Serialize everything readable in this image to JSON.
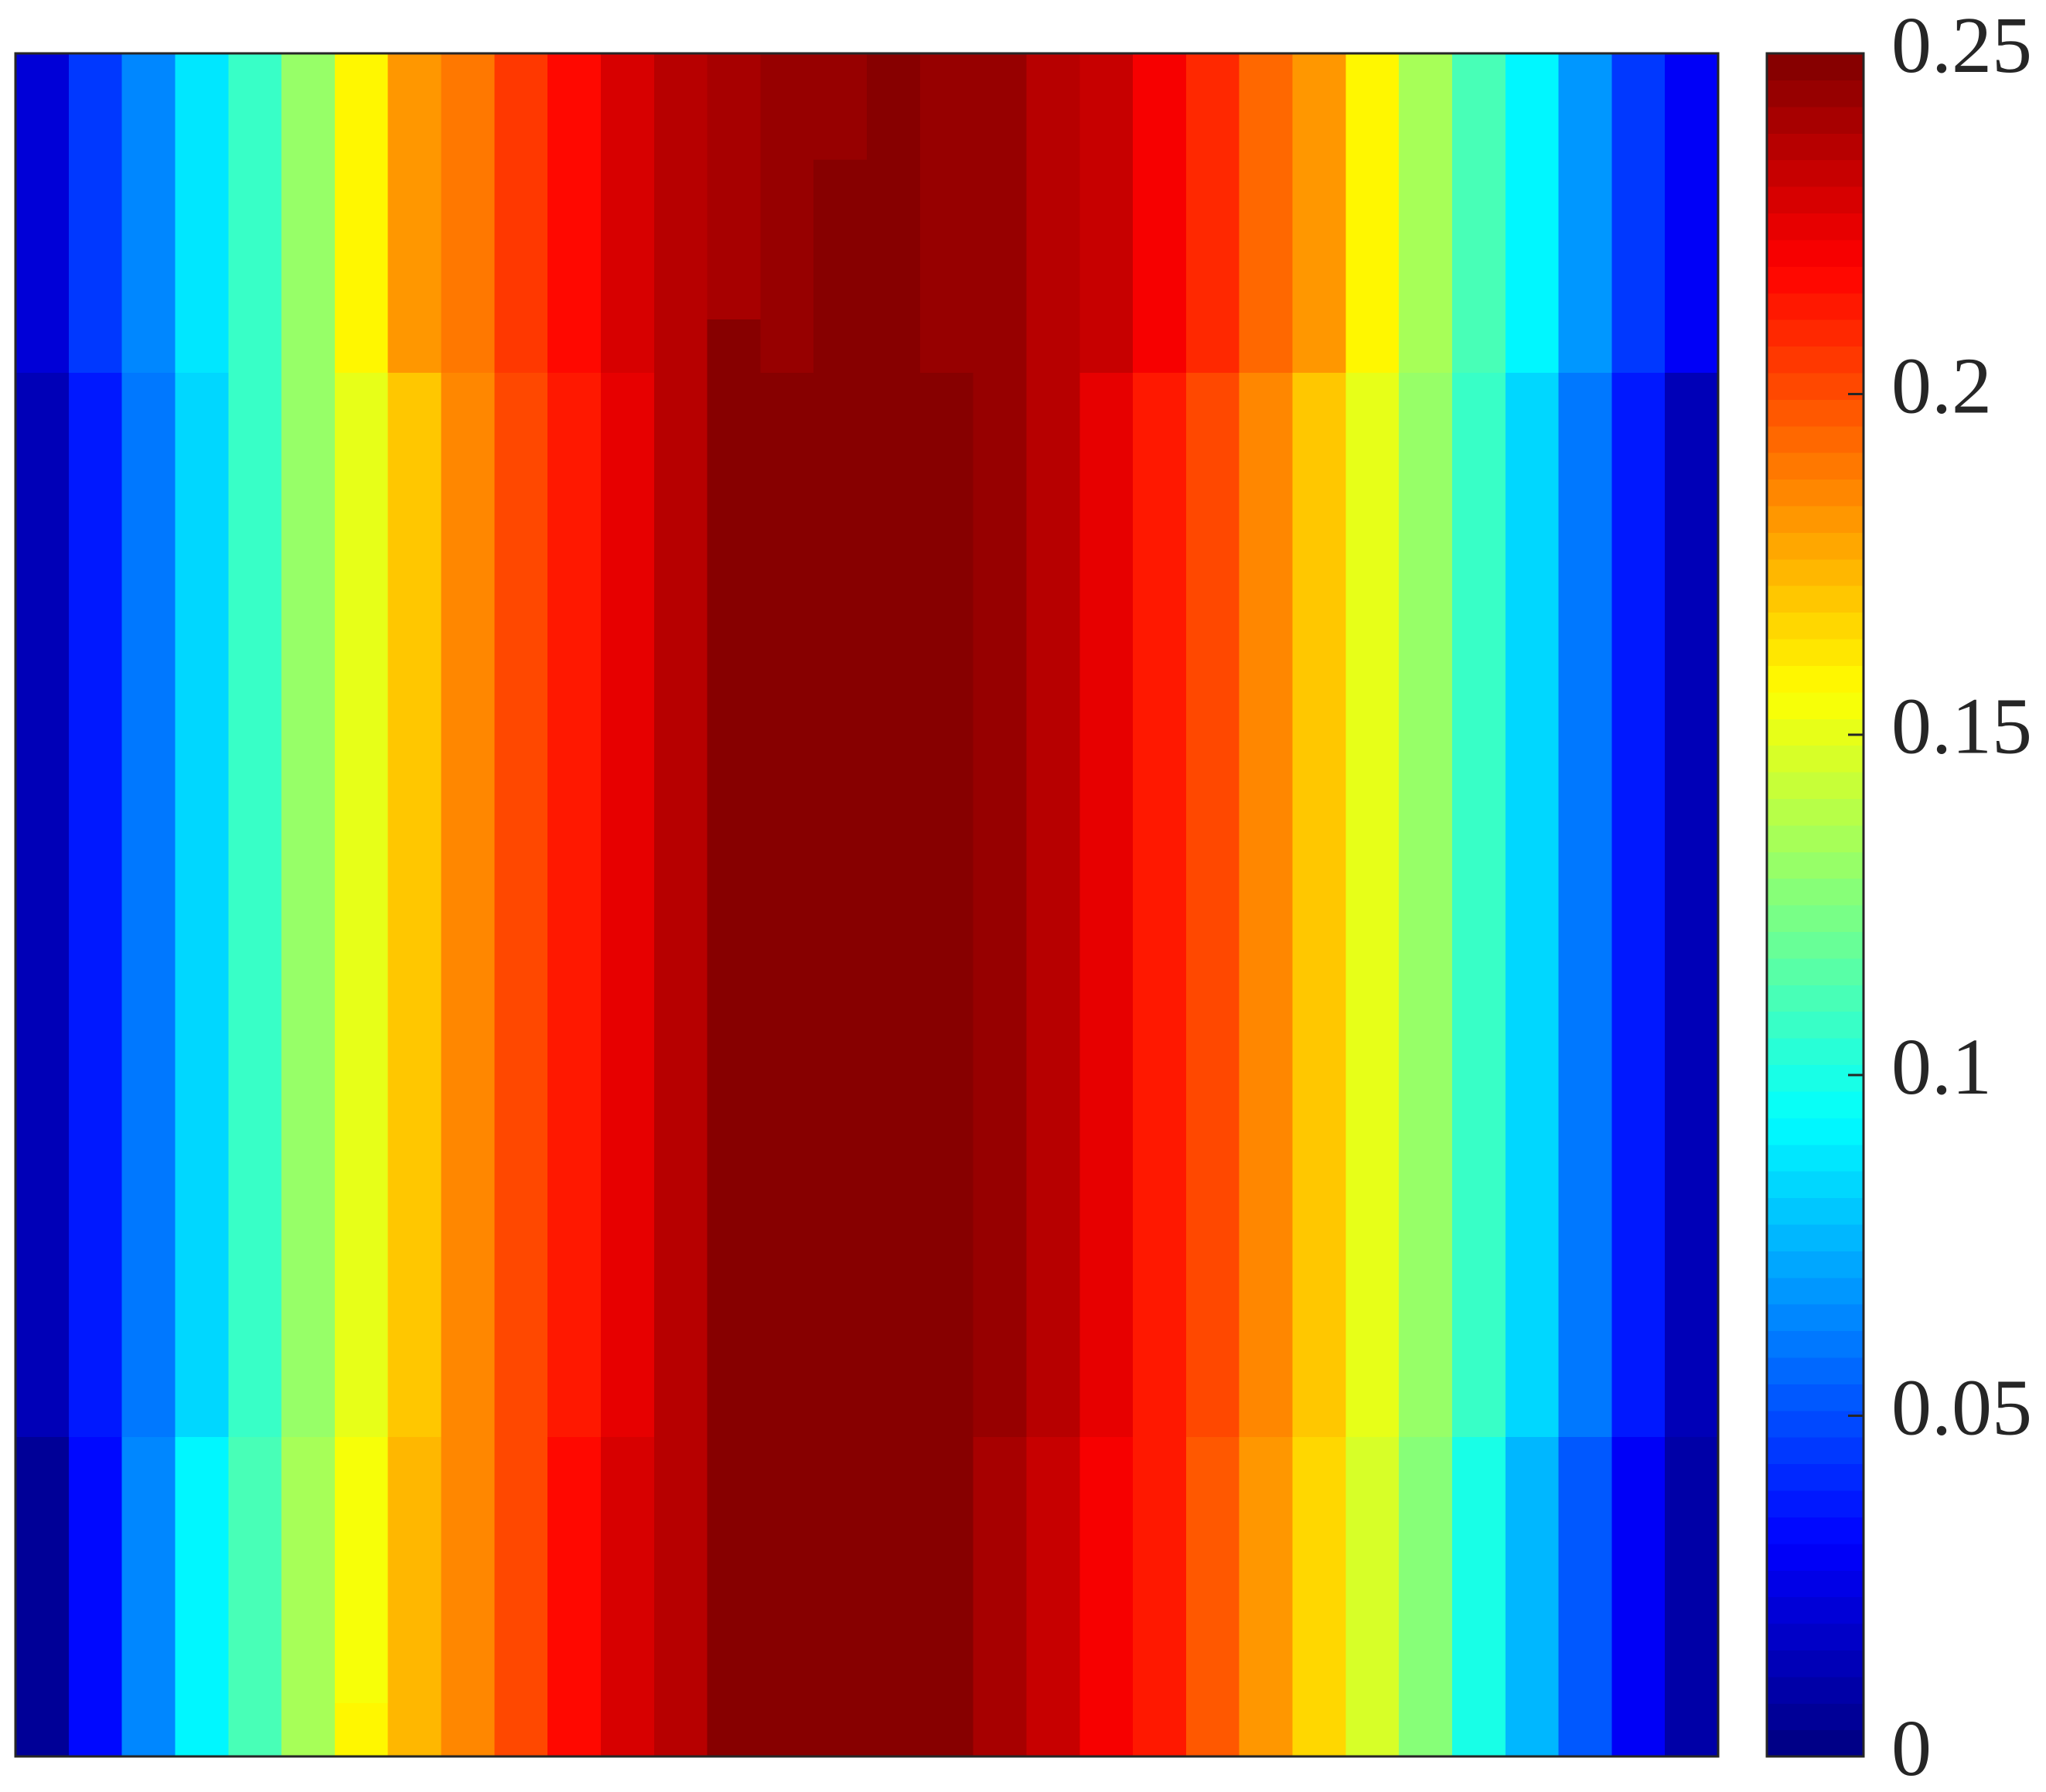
{
  "chart_data": {
    "type": "heatmap",
    "colormap": "jet",
    "clim": [
      0,
      0.25
    ],
    "cticks": [
      0,
      0.05,
      0.1,
      0.15,
      0.2,
      0.25
    ],
    "values": [
      [
        0.022,
        0.045,
        0.066,
        0.088,
        0.108,
        0.13,
        0.16,
        0.18,
        0.19,
        0.205,
        0.218,
        0.228,
        0.236,
        0.242,
        0.244,
        0.246,
        0.248,
        0.246,
        0.244,
        0.238,
        0.232,
        0.22,
        0.208,
        0.193,
        0.18,
        0.16,
        0.135,
        0.11,
        0.09,
        0.068,
        0.045,
        0.03
      ],
      [
        0.022,
        0.045,
        0.066,
        0.088,
        0.108,
        0.13,
        0.16,
        0.18,
        0.19,
        0.205,
        0.218,
        0.228,
        0.236,
        0.242,
        0.244,
        0.246,
        0.248,
        0.246,
        0.244,
        0.238,
        0.232,
        0.22,
        0.208,
        0.193,
        0.18,
        0.16,
        0.135,
        0.11,
        0.09,
        0.068,
        0.045,
        0.03
      ],
      [
        0.022,
        0.045,
        0.066,
        0.088,
        0.108,
        0.13,
        0.16,
        0.18,
        0.19,
        0.205,
        0.218,
        0.228,
        0.236,
        0.242,
        0.244,
        0.25,
        0.248,
        0.246,
        0.244,
        0.238,
        0.232,
        0.22,
        0.208,
        0.193,
        0.18,
        0.16,
        0.135,
        0.11,
        0.09,
        0.068,
        0.045,
        0.03
      ],
      [
        0.022,
        0.045,
        0.066,
        0.088,
        0.108,
        0.13,
        0.16,
        0.18,
        0.19,
        0.205,
        0.218,
        0.228,
        0.236,
        0.242,
        0.244,
        0.25,
        0.25,
        0.246,
        0.244,
        0.238,
        0.232,
        0.22,
        0.208,
        0.193,
        0.18,
        0.16,
        0.135,
        0.11,
        0.09,
        0.068,
        0.045,
        0.03
      ],
      [
        0.022,
        0.045,
        0.066,
        0.088,
        0.108,
        0.13,
        0.16,
        0.18,
        0.19,
        0.205,
        0.218,
        0.228,
        0.236,
        0.242,
        0.244,
        0.25,
        0.25,
        0.246,
        0.244,
        0.238,
        0.232,
        0.22,
        0.208,
        0.193,
        0.18,
        0.16,
        0.135,
        0.11,
        0.09,
        0.068,
        0.045,
        0.03
      ],
      [
        0.022,
        0.045,
        0.066,
        0.088,
        0.108,
        0.13,
        0.16,
        0.18,
        0.19,
        0.205,
        0.218,
        0.228,
        0.236,
        0.247,
        0.244,
        0.25,
        0.25,
        0.246,
        0.244,
        0.238,
        0.232,
        0.22,
        0.208,
        0.193,
        0.18,
        0.16,
        0.135,
        0.11,
        0.09,
        0.068,
        0.045,
        0.03
      ],
      [
        0.012,
        0.037,
        0.061,
        0.084,
        0.107,
        0.129,
        0.149,
        0.168,
        0.185,
        0.201,
        0.214,
        0.226,
        0.235,
        0.247,
        0.25,
        0.25,
        0.25,
        0.247,
        0.243,
        0.235,
        0.226,
        0.214,
        0.201,
        0.185,
        0.168,
        0.149,
        0.129,
        0.107,
        0.084,
        0.061,
        0.037,
        0.012
      ],
      [
        0.012,
        0.037,
        0.061,
        0.084,
        0.107,
        0.129,
        0.149,
        0.168,
        0.185,
        0.201,
        0.214,
        0.226,
        0.235,
        0.247,
        0.25,
        0.25,
        0.25,
        0.247,
        0.243,
        0.235,
        0.226,
        0.214,
        0.201,
        0.185,
        0.168,
        0.149,
        0.129,
        0.107,
        0.084,
        0.061,
        0.037,
        0.012
      ],
      [
        0.012,
        0.037,
        0.061,
        0.084,
        0.107,
        0.129,
        0.149,
        0.168,
        0.185,
        0.201,
        0.214,
        0.226,
        0.235,
        0.247,
        0.25,
        0.25,
        0.25,
        0.25,
        0.243,
        0.235,
        0.226,
        0.214,
        0.201,
        0.185,
        0.168,
        0.149,
        0.129,
        0.107,
        0.084,
        0.061,
        0.037,
        0.012
      ],
      [
        0.012,
        0.037,
        0.061,
        0.084,
        0.107,
        0.129,
        0.149,
        0.168,
        0.185,
        0.201,
        0.214,
        0.226,
        0.235,
        0.247,
        0.25,
        0.25,
        0.25,
        0.25,
        0.243,
        0.235,
        0.226,
        0.214,
        0.201,
        0.185,
        0.168,
        0.149,
        0.129,
        0.107,
        0.084,
        0.061,
        0.037,
        0.012
      ],
      [
        0.012,
        0.037,
        0.061,
        0.084,
        0.107,
        0.129,
        0.149,
        0.168,
        0.185,
        0.201,
        0.214,
        0.226,
        0.235,
        0.247,
        0.25,
        0.25,
        0.25,
        0.25,
        0.243,
        0.235,
        0.226,
        0.214,
        0.201,
        0.185,
        0.168,
        0.149,
        0.129,
        0.107,
        0.084,
        0.061,
        0.037,
        0.012
      ],
      [
        0.012,
        0.037,
        0.061,
        0.084,
        0.107,
        0.129,
        0.149,
        0.168,
        0.185,
        0.201,
        0.214,
        0.226,
        0.235,
        0.247,
        0.25,
        0.25,
        0.25,
        0.25,
        0.243,
        0.235,
        0.226,
        0.214,
        0.201,
        0.185,
        0.168,
        0.149,
        0.129,
        0.107,
        0.084,
        0.061,
        0.037,
        0.012
      ],
      [
        0.012,
        0.037,
        0.061,
        0.084,
        0.107,
        0.129,
        0.149,
        0.168,
        0.185,
        0.201,
        0.214,
        0.226,
        0.235,
        0.247,
        0.25,
        0.25,
        0.25,
        0.25,
        0.243,
        0.235,
        0.226,
        0.214,
        0.201,
        0.185,
        0.168,
        0.149,
        0.129,
        0.107,
        0.084,
        0.061,
        0.037,
        0.012
      ],
      [
        0.012,
        0.037,
        0.061,
        0.084,
        0.107,
        0.129,
        0.149,
        0.168,
        0.185,
        0.201,
        0.214,
        0.226,
        0.235,
        0.247,
        0.25,
        0.25,
        0.25,
        0.25,
        0.243,
        0.235,
        0.226,
        0.214,
        0.201,
        0.185,
        0.168,
        0.149,
        0.129,
        0.107,
        0.084,
        0.061,
        0.037,
        0.012
      ],
      [
        0.012,
        0.037,
        0.061,
        0.084,
        0.107,
        0.129,
        0.149,
        0.168,
        0.185,
        0.201,
        0.214,
        0.226,
        0.235,
        0.247,
        0.25,
        0.25,
        0.25,
        0.25,
        0.243,
        0.235,
        0.226,
        0.214,
        0.201,
        0.185,
        0.168,
        0.149,
        0.129,
        0.107,
        0.084,
        0.061,
        0.037,
        0.012
      ],
      [
        0.012,
        0.037,
        0.061,
        0.084,
        0.107,
        0.129,
        0.149,
        0.168,
        0.185,
        0.201,
        0.214,
        0.226,
        0.235,
        0.247,
        0.25,
        0.25,
        0.25,
        0.25,
        0.243,
        0.235,
        0.226,
        0.214,
        0.201,
        0.185,
        0.168,
        0.149,
        0.129,
        0.107,
        0.084,
        0.061,
        0.037,
        0.012
      ],
      [
        0.012,
        0.037,
        0.061,
        0.084,
        0.107,
        0.129,
        0.149,
        0.168,
        0.185,
        0.201,
        0.214,
        0.226,
        0.235,
        0.247,
        0.25,
        0.25,
        0.25,
        0.25,
        0.243,
        0.235,
        0.226,
        0.214,
        0.201,
        0.185,
        0.168,
        0.149,
        0.129,
        0.107,
        0.084,
        0.061,
        0.037,
        0.012
      ],
      [
        0.012,
        0.037,
        0.061,
        0.084,
        0.107,
        0.129,
        0.149,
        0.168,
        0.185,
        0.201,
        0.214,
        0.226,
        0.235,
        0.247,
        0.25,
        0.25,
        0.25,
        0.25,
        0.243,
        0.235,
        0.226,
        0.214,
        0.201,
        0.185,
        0.168,
        0.149,
        0.129,
        0.107,
        0.084,
        0.061,
        0.037,
        0.012
      ],
      [
        0.012,
        0.037,
        0.061,
        0.084,
        0.107,
        0.129,
        0.149,
        0.168,
        0.185,
        0.201,
        0.214,
        0.226,
        0.235,
        0.247,
        0.25,
        0.25,
        0.25,
        0.25,
        0.243,
        0.235,
        0.226,
        0.214,
        0.201,
        0.185,
        0.168,
        0.149,
        0.129,
        0.107,
        0.084,
        0.061,
        0.037,
        0.012
      ],
      [
        0.012,
        0.037,
        0.061,
        0.084,
        0.107,
        0.129,
        0.149,
        0.168,
        0.185,
        0.201,
        0.214,
        0.226,
        0.235,
        0.247,
        0.25,
        0.25,
        0.25,
        0.25,
        0.243,
        0.235,
        0.226,
        0.214,
        0.201,
        0.185,
        0.168,
        0.149,
        0.129,
        0.107,
        0.084,
        0.061,
        0.037,
        0.012
      ],
      [
        0.012,
        0.037,
        0.061,
        0.084,
        0.107,
        0.129,
        0.149,
        0.168,
        0.185,
        0.201,
        0.214,
        0.226,
        0.235,
        0.247,
        0.25,
        0.25,
        0.25,
        0.25,
        0.243,
        0.235,
        0.226,
        0.214,
        0.201,
        0.185,
        0.168,
        0.149,
        0.129,
        0.107,
        0.084,
        0.061,
        0.037,
        0.012
      ],
      [
        0.012,
        0.037,
        0.061,
        0.084,
        0.107,
        0.129,
        0.149,
        0.168,
        0.185,
        0.201,
        0.214,
        0.226,
        0.235,
        0.247,
        0.25,
        0.25,
        0.25,
        0.25,
        0.243,
        0.235,
        0.226,
        0.214,
        0.201,
        0.185,
        0.168,
        0.149,
        0.129,
        0.107,
        0.084,
        0.061,
        0.037,
        0.012
      ],
      [
        0.012,
        0.037,
        0.061,
        0.084,
        0.107,
        0.129,
        0.149,
        0.168,
        0.185,
        0.201,
        0.214,
        0.226,
        0.235,
        0.247,
        0.25,
        0.25,
        0.25,
        0.25,
        0.243,
        0.235,
        0.226,
        0.214,
        0.201,
        0.185,
        0.168,
        0.149,
        0.129,
        0.107,
        0.084,
        0.061,
        0.037,
        0.012
      ],
      [
        0.012,
        0.037,
        0.061,
        0.084,
        0.107,
        0.129,
        0.149,
        0.168,
        0.185,
        0.201,
        0.214,
        0.226,
        0.235,
        0.247,
        0.25,
        0.25,
        0.25,
        0.25,
        0.243,
        0.235,
        0.226,
        0.214,
        0.201,
        0.185,
        0.168,
        0.149,
        0.129,
        0.107,
        0.084,
        0.061,
        0.037,
        0.012
      ],
      [
        0.012,
        0.037,
        0.061,
        0.084,
        0.107,
        0.129,
        0.149,
        0.168,
        0.185,
        0.201,
        0.214,
        0.226,
        0.235,
        0.247,
        0.25,
        0.25,
        0.25,
        0.25,
        0.243,
        0.235,
        0.226,
        0.214,
        0.201,
        0.185,
        0.168,
        0.149,
        0.129,
        0.107,
        0.084,
        0.061,
        0.037,
        0.012
      ],
      [
        0.012,
        0.037,
        0.061,
        0.084,
        0.107,
        0.129,
        0.149,
        0.168,
        0.185,
        0.201,
        0.214,
        0.226,
        0.235,
        0.247,
        0.25,
        0.25,
        0.25,
        0.25,
        0.243,
        0.235,
        0.226,
        0.214,
        0.201,
        0.185,
        0.168,
        0.149,
        0.129,
        0.107,
        0.084,
        0.061,
        0.037,
        0.012
      ],
      [
        0.006,
        0.035,
        0.063,
        0.09,
        0.112,
        0.135,
        0.155,
        0.172,
        0.187,
        0.202,
        0.215,
        0.227,
        0.236,
        0.247,
        0.25,
        0.25,
        0.25,
        0.248,
        0.24,
        0.232,
        0.222,
        0.212,
        0.198,
        0.18,
        0.165,
        0.145,
        0.125,
        0.1,
        0.078,
        0.052,
        0.028,
        0.01
      ],
      [
        0.006,
        0.035,
        0.063,
        0.09,
        0.112,
        0.135,
        0.155,
        0.172,
        0.187,
        0.202,
        0.215,
        0.227,
        0.236,
        0.247,
        0.25,
        0.25,
        0.25,
        0.248,
        0.24,
        0.232,
        0.222,
        0.212,
        0.198,
        0.18,
        0.165,
        0.145,
        0.125,
        0.1,
        0.078,
        0.052,
        0.028,
        0.01
      ],
      [
        0.006,
        0.035,
        0.063,
        0.09,
        0.112,
        0.135,
        0.155,
        0.172,
        0.187,
        0.202,
        0.215,
        0.227,
        0.236,
        0.247,
        0.25,
        0.25,
        0.25,
        0.248,
        0.24,
        0.232,
        0.222,
        0.212,
        0.198,
        0.18,
        0.165,
        0.145,
        0.125,
        0.1,
        0.078,
        0.052,
        0.028,
        0.01
      ],
      [
        0.006,
        0.035,
        0.063,
        0.09,
        0.112,
        0.135,
        0.155,
        0.172,
        0.187,
        0.202,
        0.215,
        0.227,
        0.236,
        0.247,
        0.25,
        0.25,
        0.25,
        0.248,
        0.24,
        0.232,
        0.222,
        0.212,
        0.198,
        0.18,
        0.165,
        0.145,
        0.125,
        0.1,
        0.078,
        0.052,
        0.028,
        0.01
      ],
      [
        0.006,
        0.035,
        0.063,
        0.09,
        0.112,
        0.135,
        0.155,
        0.172,
        0.187,
        0.202,
        0.215,
        0.227,
        0.236,
        0.247,
        0.25,
        0.25,
        0.25,
        0.248,
        0.24,
        0.232,
        0.222,
        0.212,
        0.198,
        0.18,
        0.165,
        0.145,
        0.125,
        0.1,
        0.078,
        0.052,
        0.028,
        0.01
      ],
      [
        0.006,
        0.035,
        0.063,
        0.09,
        0.112,
        0.135,
        0.158,
        0.172,
        0.187,
        0.202,
        0.215,
        0.227,
        0.236,
        0.247,
        0.25,
        0.25,
        0.25,
        0.248,
        0.24,
        0.232,
        0.222,
        0.212,
        0.198,
        0.18,
        0.165,
        0.145,
        0.125,
        0.1,
        0.078,
        0.052,
        0.028,
        0.01
      ]
    ]
  }
}
